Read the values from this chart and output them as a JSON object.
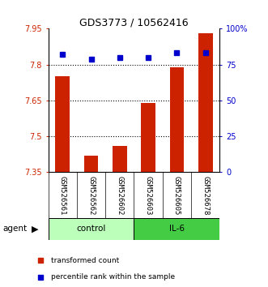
{
  "title": "GDS3773 / 10562416",
  "samples": [
    "GSM526561",
    "GSM526562",
    "GSM526602",
    "GSM526603",
    "GSM526605",
    "GSM526678"
  ],
  "bar_values": [
    7.75,
    7.42,
    7.46,
    7.64,
    7.79,
    7.93
  ],
  "bar_bottom": 7.35,
  "percentile_values": [
    82,
    79,
    80,
    80,
    83,
    83
  ],
  "bar_color": "#cc2200",
  "dot_color": "#0000cc",
  "ylim_left": [
    7.35,
    7.95
  ],
  "ylim_right": [
    0,
    100
  ],
  "yticks_left": [
    7.35,
    7.5,
    7.65,
    7.8,
    7.95
  ],
  "yticks_left_labels": [
    "7.35",
    "7.5",
    "7.65",
    "7.8",
    "7.95"
  ],
  "yticks_right": [
    0,
    25,
    50,
    75,
    100
  ],
  "yticks_right_labels": [
    "0",
    "25",
    "50",
    "75",
    "100%"
  ],
  "hlines": [
    7.5,
    7.65,
    7.8
  ],
  "legend_bar_label": "transformed count",
  "legend_dot_label": "percentile rank within the sample",
  "control_color": "#bbffbb",
  "il6_color": "#44cc44",
  "sample_bg_color": "#cccccc"
}
